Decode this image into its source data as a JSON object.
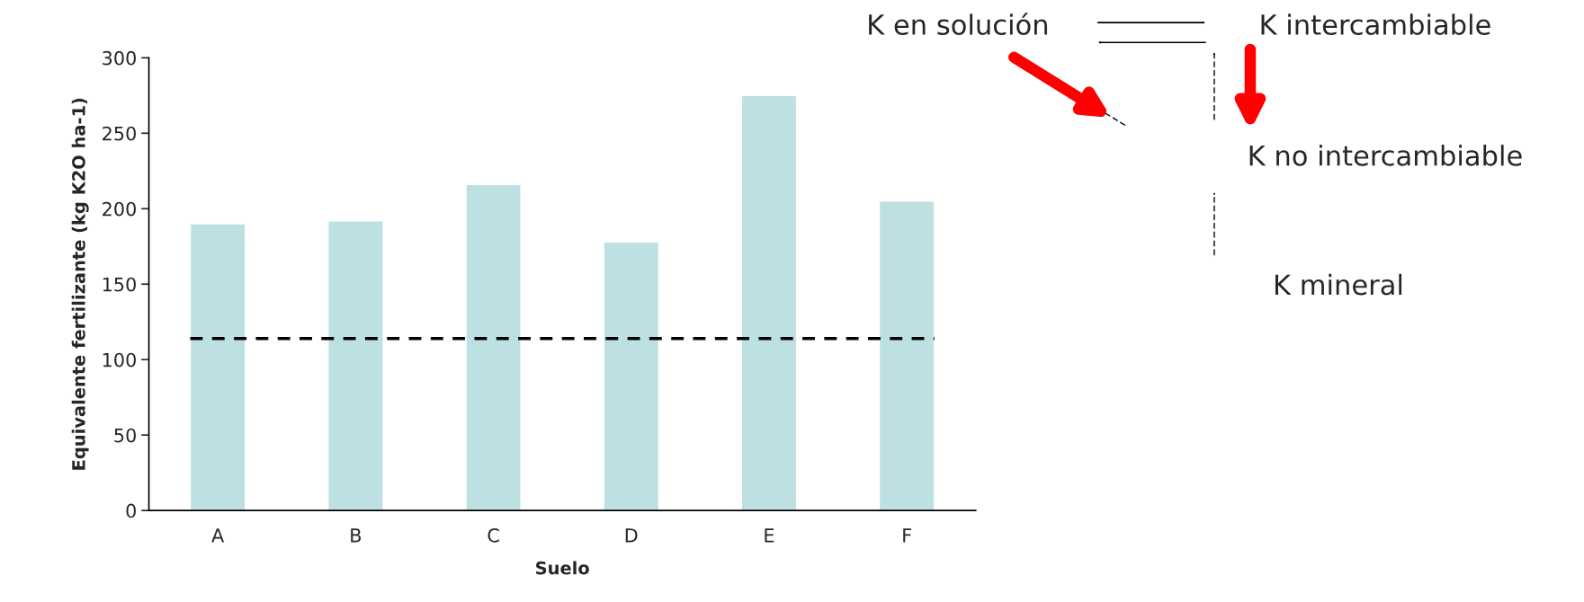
{
  "chart_data": [
    {
      "type": "bar",
      "xlabel": "Suelo",
      "ylabel": "Equivalente fertilizante (kg K2O ha-1)",
      "categories": [
        "A",
        "B",
        "C",
        "D",
        "E",
        "F"
      ],
      "values": [
        190,
        192,
        216,
        178,
        275,
        205
      ],
      "color": "#bde0e3",
      "ylim": [
        0,
        300
      ],
      "yticks": [
        0,
        50,
        100,
        150,
        200,
        250,
        300
      ],
      "grid": false,
      "legend": false,
      "ref_lines": [
        {
          "axis": "y",
          "value": 114,
          "color": "#000000",
          "line_style": "dashed"
        }
      ]
    },
    {
      "type": "other",
      "annotations": [
        "K en solución",
        "K intercambiable",
        "K no intercambiable",
        "K mineral"
      ]
    }
  ]
}
